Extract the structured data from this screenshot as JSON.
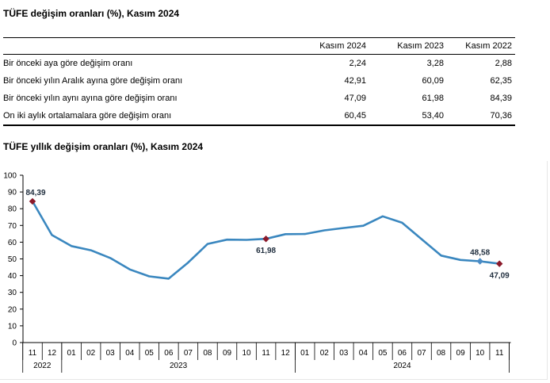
{
  "title_table": "TÜFE değişim oranları (%), Kasım 2024",
  "table": {
    "columns": [
      "Kasım 2024",
      "Kasım 2023",
      "Kasım 2022"
    ],
    "rows": [
      {
        "label": "Bir önceki aya göre değişim oranı",
        "values": [
          "2,24",
          "3,28",
          "2,88"
        ]
      },
      {
        "label": "Bir önceki yılın Aralık ayına göre değişim oranı",
        "values": [
          "42,91",
          "60,09",
          "62,35"
        ]
      },
      {
        "label": "Bir önceki yılın aynı ayına göre değişim oranı",
        "values": [
          "47,09",
          "61,98",
          "84,39"
        ]
      },
      {
        "label": "On iki aylık ortalamalara göre değişim oranı",
        "values": [
          "60,45",
          "53,40",
          "70,36"
        ]
      }
    ]
  },
  "title_chart": "TÜFE yıllık değişim oranları (%), Kasım 2024",
  "colors": {
    "line": "#3a87bf",
    "marker_red": "#8b1a2b",
    "marker_blue": "#4a8cc6"
  },
  "chart_data": {
    "type": "line",
    "title": "TÜFE yıllık değişim oranları (%), Kasım 2024",
    "categories": [
      "11",
      "12",
      "01",
      "02",
      "03",
      "04",
      "05",
      "06",
      "07",
      "08",
      "09",
      "10",
      "11",
      "12",
      "01",
      "02",
      "03",
      "04",
      "05",
      "06",
      "07",
      "08",
      "09",
      "10",
      "11"
    ],
    "years": [
      {
        "label": "2022",
        "from": 0,
        "to": 1
      },
      {
        "label": "2023",
        "from": 2,
        "to": 13
      },
      {
        "label": "2024",
        "from": 14,
        "to": 24
      }
    ],
    "values": [
      84.39,
      64.27,
      57.68,
      55.18,
      50.51,
      43.68,
      39.59,
      38.21,
      47.83,
      58.94,
      61.53,
      61.36,
      61.98,
      64.77,
      64.86,
      67.07,
      68.5,
      69.8,
      75.45,
      71.6,
      61.78,
      51.97,
      49.38,
      48.58,
      47.09
    ],
    "data_labels": [
      {
        "index": 0,
        "text": "84,39",
        "marker": "red"
      },
      {
        "index": 12,
        "text": "61,98",
        "marker": "red"
      },
      {
        "index": 23,
        "text": "48,58",
        "marker": "blue"
      },
      {
        "index": 24,
        "text": "47,09",
        "marker": "red"
      }
    ],
    "y_ticks": [
      "0",
      "10",
      "20",
      "30",
      "40",
      "50",
      "60",
      "70",
      "80",
      "90",
      "100"
    ],
    "ylim": [
      0,
      100
    ],
    "grid": false,
    "legend": "none"
  }
}
